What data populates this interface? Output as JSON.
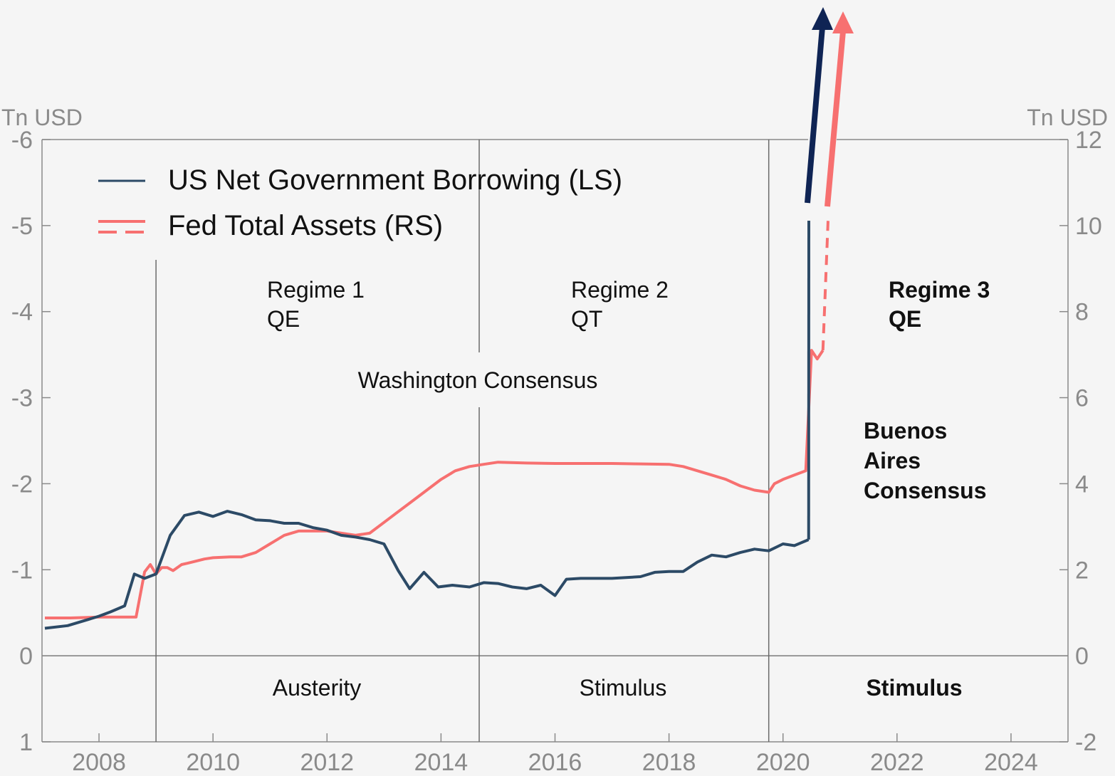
{
  "chart_data": {
    "type": "line",
    "left_axis": {
      "unit": "Tn USD",
      "inverted": true,
      "ylim": [
        -6,
        1
      ],
      "ticks": [
        "-6",
        "-5",
        "-4",
        "-3",
        "-2",
        "-1",
        "0",
        "1"
      ]
    },
    "right_axis": {
      "unit": "Tn USD",
      "ylim": [
        12,
        -2
      ],
      "ticks": [
        "12",
        "10",
        "8",
        "6",
        "4",
        "2",
        "0",
        "-2"
      ]
    },
    "x_axis": {
      "xlim": [
        2007,
        2025
      ],
      "ticks": [
        "2008",
        "2010",
        "2012",
        "2014",
        "2016",
        "2018",
        "2020",
        "2022",
        "2024"
      ]
    },
    "legend": {
      "placement": "top-left"
    },
    "series": [
      {
        "name": "US Net Government Borrowing (LS)",
        "color": "#2c4a66",
        "axis": "left",
        "x": [
          2007.05,
          2007.45,
          2007.8,
          2008.0,
          2008.2,
          2008.45,
          2008.62,
          2008.8,
          2009.0,
          2009.25,
          2009.5,
          2009.75,
          2010.0,
          2010.25,
          2010.5,
          2010.75,
          2011.0,
          2011.25,
          2011.5,
          2011.75,
          2012.0,
          2012.25,
          2012.5,
          2012.75,
          2013.0,
          2013.25,
          2013.45,
          2013.7,
          2013.95,
          2014.2,
          2014.5,
          2014.75,
          2015.0,
          2015.25,
          2015.5,
          2015.75,
          2016.0,
          2016.2,
          2016.45,
          2016.75,
          2017.0,
          2017.5,
          2017.75,
          2018.0,
          2018.25,
          2018.5,
          2018.75,
          2019.0,
          2019.25,
          2019.5,
          2019.75,
          2020.0,
          2020.2,
          2020.45
        ],
        "values": [
          -0.32,
          -0.35,
          -0.42,
          -0.46,
          -0.51,
          -0.58,
          -0.95,
          -0.9,
          -0.95,
          -1.4,
          -1.63,
          -1.67,
          -1.62,
          -1.68,
          -1.64,
          -1.58,
          -1.57,
          -1.54,
          -1.54,
          -1.49,
          -1.46,
          -1.4,
          -1.38,
          -1.35,
          -1.3,
          -0.99,
          -0.78,
          -0.97,
          -0.8,
          -0.82,
          -0.8,
          -0.85,
          -0.84,
          -0.8,
          -0.78,
          -0.82,
          -0.7,
          -0.89,
          -0.9,
          -0.9,
          -0.9,
          -0.92,
          -0.97,
          -0.98,
          -0.98,
          -1.09,
          -1.17,
          -1.15,
          -1.2,
          -1.24,
          -1.22,
          -1.3,
          -1.28,
          -1.35
        ]
      },
      {
        "name": "Fed Total Assets (RS)",
        "color": "#f77070",
        "axis": "right",
        "x": [
          2007.05,
          2007.5,
          2008.0,
          2008.5,
          2008.65,
          2008.8,
          2008.9,
          2009.0,
          2009.1,
          2009.2,
          2009.3,
          2009.45,
          2009.55,
          2009.7,
          2009.85,
          2010.0,
          2010.3,
          2010.5,
          2010.75,
          2011.0,
          2011.25,
          2011.5,
          2011.75,
          2012.0,
          2012.25,
          2012.5,
          2012.75,
          2013.0,
          2013.25,
          2013.5,
          2013.75,
          2014.0,
          2014.25,
          2014.5,
          2014.75,
          2015.0,
          2015.5,
          2016.0,
          2016.5,
          2017.0,
          2017.5,
          2018.0,
          2018.25,
          2018.5,
          2018.75,
          2019.0,
          2019.25,
          2019.5,
          2019.75,
          2019.85,
          2020.0,
          2020.2,
          2020.4,
          2020.5,
          2020.6,
          2020.7
        ],
        "values": [
          0.88,
          0.88,
          0.9,
          0.9,
          0.9,
          1.95,
          2.12,
          1.9,
          2.05,
          2.05,
          1.98,
          2.12,
          2.15,
          2.2,
          2.25,
          2.28,
          2.3,
          2.3,
          2.4,
          2.6,
          2.8,
          2.9,
          2.9,
          2.9,
          2.85,
          2.8,
          2.85,
          3.1,
          3.35,
          3.6,
          3.85,
          4.1,
          4.3,
          4.4,
          4.45,
          4.5,
          4.48,
          4.47,
          4.47,
          4.47,
          4.46,
          4.45,
          4.4,
          4.3,
          4.2,
          4.1,
          3.95,
          3.85,
          3.8,
          4.0,
          4.1,
          4.2,
          4.3,
          7.1,
          6.9,
          7.1
        ]
      }
    ],
    "regimes": [
      {
        "label": "Regime 1",
        "policy": "QE",
        "fiscal": "Austerity",
        "bold": false
      },
      {
        "label": "Regime 2",
        "policy": "QT",
        "fiscal": "Stimulus",
        "bold": false
      },
      {
        "label": "Regime 3",
        "policy": "QE",
        "fiscal": "Stimulus",
        "bold": true
      }
    ],
    "regime_boundaries": [
      2009.0,
      2014.67,
      2019.75
    ],
    "consensus": [
      {
        "lines": [
          "Washington Consensus"
        ],
        "bold": false
      },
      {
        "lines": [
          "Buenos",
          "Aires",
          "Consensus"
        ],
        "bold": true
      }
    ]
  }
}
